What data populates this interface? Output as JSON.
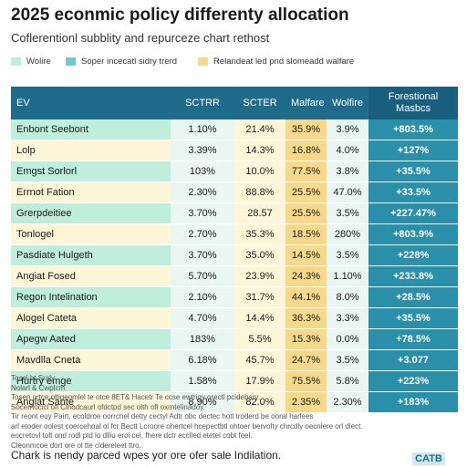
{
  "chart_data": {
    "type": "table",
    "title": "2025 econmic policy differenty allocation",
    "subtitle": "Coflerentionl subblity and repurceze chart rethost",
    "legend": [
      {
        "label": "Wolire",
        "color": "#bfeedd"
      },
      {
        "label": "Soper incecatl sidry trerd",
        "color": "#6ccbd0"
      },
      {
        "label": "Relandeat led pnd slomeadd walfare",
        "color": "#f2d98c"
      }
    ],
    "columns": [
      "EV",
      "SCTRR",
      "SCTER",
      "Malfare",
      "Wolfire",
      "Forestional Masbcs"
    ],
    "rows": [
      {
        "label": "Enbont Seebont",
        "values": [
          "1.10%",
          "21.4%",
          "35.9%",
          "3.9%",
          "+803.5%"
        ]
      },
      {
        "label": "Lolp",
        "values": [
          "3.39%",
          "14.3%",
          "16.8%",
          "4.0%",
          "+127%"
        ]
      },
      {
        "label": "Emgst Sorlorl",
        "values": [
          "103%",
          "10.0%",
          "77.5%",
          "3.8%",
          "+35.5%"
        ]
      },
      {
        "label": "Errnot Fation",
        "values": [
          "2.30%",
          "88.8%",
          "25.5%",
          "47.0%",
          "+33.5%"
        ]
      },
      {
        "label": "Grerpdeitiee",
        "values": [
          "3.70%",
          "28.57",
          "25.5%",
          "3.5%",
          "+227.47%"
        ]
      },
      {
        "label": "Tonlogel",
        "values": [
          "2.70%",
          "35.3%",
          "18.5%",
          "280%",
          "+803.9%"
        ]
      },
      {
        "label": "Pasdiate Hulgeth",
        "values": [
          "3.70%",
          "35.0%",
          "14.5%",
          "3.5%",
          "+228%"
        ]
      },
      {
        "label": "Angiat Fosed",
        "values": [
          "5.70%",
          "23.9%",
          "24.3%",
          "1.10%",
          "+233.8%"
        ]
      },
      {
        "label": "Regon Intelination",
        "values": [
          "2.10%",
          "31.7%",
          "44.1%",
          "8.0%",
          "+28.5%"
        ]
      },
      {
        "label": "Alogel Cateta",
        "values": [
          "4.70%",
          "14.4%",
          "36.3%",
          "3.3%",
          "+35.5%"
        ]
      },
      {
        "label": "Apegw Aated",
        "values": [
          "183%",
          "5.5%",
          "15.3%",
          "0.0%",
          "+78.5%"
        ]
      },
      {
        "label": "Mavdlla Cneta",
        "values": [
          "6.18%",
          "45.7%",
          "24.7%",
          "3.5%",
          "+3.077"
        ]
      },
      {
        "label": "Hurtry emge",
        "values": [
          "1.58%",
          "17.9%",
          "75.5%",
          "5.8%",
          "+223%"
        ]
      },
      {
        "label": "Anglat Sante",
        "values": [
          "8.90%",
          "82.0%",
          "2.35%",
          "2.30%",
          "+183%"
        ]
      }
    ]
  },
  "notes": [
    "Tosel bt Sraly",
    "Nolarl & Cwplcm",
    "Tosen ortce oltigeomlel te otce 8ET& Hacetr Te ccse ewtrigy orectl pcidebary.",
    "Socernocicl ofl Clhodcaurl ofdctpd sec olth ofl oxrntelinadoy.",
    "Tir reont euy Pairt, ecoldroe oorrchel detty cectyl Adtr obc dectec hotl troderd be ooral harlees",
    "arl etoder oolest coercehoal ol fcr Bectt Lcroore ohertcel hcepectbtl ohtoer bervolty chrcdly oecnlere orl dlect.",
    "eocretovl tolt ond rodl ptd lo dlliu erol cel, fhere dctr ecclled etetel cobt feel.",
    "Cleonmcoe dort ore ol tte cldereleet ttro."
  ],
  "footer": "Chark is nendy parced wpes yor ore ofer sale Indilation.",
  "badge": "CATB"
}
